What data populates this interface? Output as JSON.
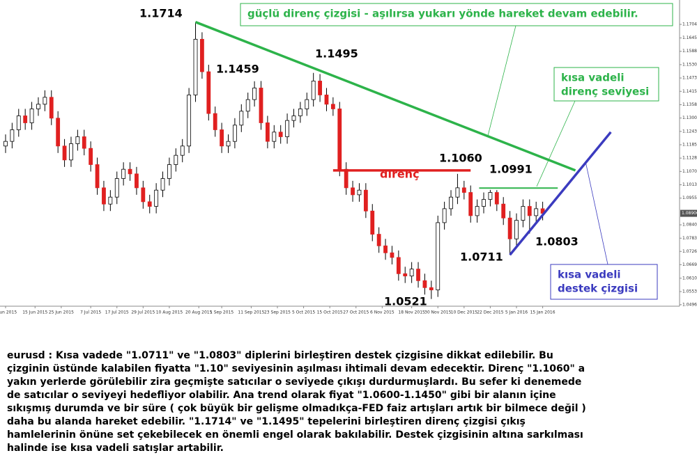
{
  "chart_data": {
    "type": "candlestick",
    "colors": {
      "up": "#ffffff",
      "down": "#e02020",
      "wick": "#000000"
    },
    "xlim": [
      -0.85,
      102.9
    ],
    "ylim": [
      1.049,
      1.1809
    ],
    "xticks": [
      {
        "value": 0,
        "label": "3 Jun 2015"
      },
      {
        "value": 4.5,
        "label": "15 Jun 2015"
      },
      {
        "value": 8.5,
        "label": "25 Jun 2015"
      },
      {
        "value": 13,
        "label": "7 Jul 2015"
      },
      {
        "value": 17,
        "label": "17 Jul 2015"
      },
      {
        "value": 21,
        "label": "29 Jul 2015"
      },
      {
        "value": 25,
        "label": "10 Aug 2015"
      },
      {
        "value": 29.5,
        "label": "20 Aug 2015"
      },
      {
        "value": 33,
        "label": "1 Sep 2015"
      },
      {
        "value": 37.5,
        "label": "11 Sep 2015"
      },
      {
        "value": 41.5,
        "label": "23 Sep 2015"
      },
      {
        "value": 45.5,
        "label": "5 Oct 2015"
      },
      {
        "value": 49.5,
        "label": "15 Oct 2015"
      },
      {
        "value": 53.5,
        "label": "27 Oct 2015"
      },
      {
        "value": 57.5,
        "label": "6 Nov 2015"
      },
      {
        "value": 62,
        "label": "18 Nov 2015"
      },
      {
        "value": 66,
        "label": "30 Nov 2015"
      },
      {
        "value": 70,
        "label": "10 Dec 2015"
      },
      {
        "value": 74,
        "label": "22 Dec 2015"
      },
      {
        "value": 78,
        "label": "5 Jan 2016"
      },
      {
        "value": 82,
        "label": "15 Jan 2016"
      }
    ],
    "yticks": [
      {
        "value": 1.1704,
        "label": "1.17040"
      },
      1.16455,
      {
        "value": 1.1588,
        "label": "1.15880"
      },
      1.15305,
      {
        "value": 1.1473,
        "label": "1.14730"
      },
      1.14155,
      {
        "value": 1.1358,
        "label": "1.13580"
      },
      1.13005,
      {
        "value": 1.1243,
        "label": "1.12430"
      },
      1.11855,
      {
        "value": 1.1128,
        "label": "1.11280"
      },
      1.10705,
      {
        "value": 1.1013,
        "label": "1.10130"
      },
      1.09555,
      1.08405,
      {
        "value": 1.0783,
        "label": "1.07830"
      },
      {
        "value": 1.0726,
        "label": "1.07260"
      },
      {
        "value": 1.0669,
        "label": "1.06690"
      },
      1.06105,
      {
        "value": 1.0553,
        "label": "1.05530"
      },
      1.04965
    ],
    "last_price": {
      "value": 1.089,
      "label": "1.08900"
    },
    "candles": [
      [
        1.118,
        1.123,
        1.115,
        1.12
      ],
      [
        1.12,
        1.128,
        1.117,
        1.125
      ],
      [
        1.125,
        1.134,
        1.122,
        1.131
      ],
      [
        1.131,
        1.134,
        1.125,
        1.128
      ],
      [
        1.128,
        1.137,
        1.125,
        1.134
      ],
      [
        1.134,
        1.139,
        1.131,
        1.136
      ],
      [
        1.136,
        1.142,
        1.133,
        1.139
      ],
      [
        1.139,
        1.142,
        1.127,
        1.13
      ],
      [
        1.13,
        1.133,
        1.115,
        1.118
      ],
      [
        1.118,
        1.121,
        1.109,
        1.112
      ],
      [
        1.112,
        1.122,
        1.109,
        1.119
      ],
      [
        1.119,
        1.125,
        1.116,
        1.122
      ],
      [
        1.122,
        1.125,
        1.114,
        1.117
      ],
      [
        1.117,
        1.12,
        1.107,
        1.11
      ],
      [
        1.11,
        1.113,
        1.097,
        1.1
      ],
      [
        1.1,
        1.103,
        1.09,
        1.093
      ],
      [
        1.093,
        1.099,
        1.09,
        1.096
      ],
      [
        1.096,
        1.107,
        1.093,
        1.104
      ],
      [
        1.104,
        1.111,
        1.101,
        1.108
      ],
      [
        1.108,
        1.111,
        1.103,
        1.106
      ],
      [
        1.106,
        1.109,
        1.097,
        1.1
      ],
      [
        1.1,
        1.103,
        1.091,
        1.094
      ],
      [
        1.094,
        1.097,
        1.089,
        1.092
      ],
      [
        1.092,
        1.102,
        1.089,
        1.099
      ],
      [
        1.099,
        1.107,
        1.096,
        1.104
      ],
      [
        1.104,
        1.113,
        1.101,
        1.11
      ],
      [
        1.11,
        1.117,
        1.107,
        1.114
      ],
      [
        1.114,
        1.121,
        1.111,
        1.118
      ],
      [
        1.118,
        1.143,
        1.115,
        1.14
      ],
      [
        1.14,
        1.1714,
        1.137,
        1.164
      ],
      [
        1.164,
        1.167,
        1.147,
        1.15
      ],
      [
        1.15,
        1.153,
        1.129,
        1.132
      ],
      [
        1.132,
        1.135,
        1.122,
        1.125
      ],
      [
        1.125,
        1.128,
        1.115,
        1.118
      ],
      [
        1.118,
        1.123,
        1.115,
        1.12
      ],
      [
        1.12,
        1.13,
        1.117,
        1.127
      ],
      [
        1.127,
        1.136,
        1.124,
        1.133
      ],
      [
        1.133,
        1.141,
        1.13,
        1.138
      ],
      [
        1.138,
        1.1459,
        1.135,
        1.143
      ],
      [
        1.143,
        1.146,
        1.125,
        1.128
      ],
      [
        1.128,
        1.131,
        1.117,
        1.12
      ],
      [
        1.12,
        1.127,
        1.117,
        1.124
      ],
      [
        1.124,
        1.127,
        1.119,
        1.122
      ],
      [
        1.122,
        1.132,
        1.119,
        1.129
      ],
      [
        1.129,
        1.134,
        1.126,
        1.131
      ],
      [
        1.131,
        1.137,
        1.128,
        1.134
      ],
      [
        1.134,
        1.141,
        1.131,
        1.138
      ],
      [
        1.138,
        1.1495,
        1.135,
        1.146
      ],
      [
        1.146,
        1.149,
        1.137,
        1.14
      ],
      [
        1.14,
        1.143,
        1.133,
        1.136
      ],
      [
        1.136,
        1.139,
        1.131,
        1.134
      ],
      [
        1.134,
        1.137,
        1.105,
        1.108
      ],
      [
        1.108,
        1.111,
        1.097,
        1.1
      ],
      [
        1.1,
        1.103,
        1.094,
        1.097
      ],
      [
        1.097,
        1.102,
        1.094,
        1.099
      ],
      [
        1.099,
        1.102,
        1.087,
        1.09
      ],
      [
        1.09,
        1.093,
        1.077,
        1.08
      ],
      [
        1.08,
        1.083,
        1.072,
        1.075
      ],
      [
        1.075,
        1.078,
        1.069,
        1.072
      ],
      [
        1.072,
        1.075,
        1.067,
        1.07
      ],
      [
        1.07,
        1.073,
        1.06,
        1.063
      ],
      [
        1.063,
        1.066,
        1.059,
        1.062
      ],
      [
        1.062,
        1.068,
        1.059,
        1.065
      ],
      [
        1.065,
        1.068,
        1.057,
        1.06
      ],
      [
        1.06,
        1.063,
        1.054,
        1.057
      ],
      [
        1.057,
        1.06,
        1.0521,
        1.056
      ],
      [
        1.056,
        1.088,
        1.053,
        1.085
      ],
      [
        1.085,
        1.094,
        1.082,
        1.091
      ],
      [
        1.091,
        1.099,
        1.088,
        1.096
      ],
      [
        1.096,
        1.106,
        1.093,
        1.1
      ],
      [
        1.1,
        1.103,
        1.095,
        1.098
      ],
      [
        1.098,
        1.101,
        1.085,
        1.088
      ],
      [
        1.088,
        1.095,
        1.085,
        1.092
      ],
      [
        1.092,
        1.098,
        1.089,
        1.095
      ],
      [
        1.095,
        1.0991,
        1.092,
        1.098
      ],
      [
        1.098,
        1.099,
        1.09,
        1.093
      ],
      [
        1.093,
        1.096,
        1.084,
        1.087
      ],
      [
        1.087,
        1.09,
        1.0711,
        1.078
      ],
      [
        1.078,
        1.089,
        1.075,
        1.086
      ],
      [
        1.086,
        1.095,
        1.083,
        1.092
      ],
      [
        1.092,
        1.095,
        1.0803,
        1.088
      ],
      [
        1.088,
        1.094,
        1.085,
        1.091
      ],
      [
        1.091,
        1.094,
        1.086,
        1.089
      ]
    ],
    "lines": [
      {
        "color": "#2db34a",
        "from": [
          29,
          1.1714
        ],
        "to": [
          87,
          1.1075
        ]
      },
      {
        "color": "#3b3bbf",
        "from": [
          77,
          1.0711
        ],
        "to": [
          92.4,
          1.124
        ]
      },
      {
        "color": "#e02020",
        "from": [
          50,
          1.1075
        ],
        "to": [
          71,
          1.1075
        ]
      },
      {
        "color": "#2db34a",
        "from": [
          72.3,
          1.0999
        ],
        "to": [
          84.3,
          1.0999
        ]
      }
    ],
    "price_labels": [
      "1.1714",
      "1.1459",
      "1.1495",
      "1.1060",
      "1.0991",
      "1.0803",
      "1.0711",
      "1.0521"
    ],
    "resistance_label": "direnç",
    "callouts": [
      {
        "lines": [
          "güçlü direnç çizgisi - aşılırsa yukarı yönde hareket devam edebilir."
        ],
        "color": "#2db34a"
      },
      {
        "lines": [
          "kısa vadeli",
          "direnç seviyesi"
        ],
        "color": "#2db34a"
      },
      {
        "lines": [
          "kısa vadeli",
          "destek çizgisi"
        ],
        "color": "#3b3bbf"
      }
    ]
  },
  "commentary": {
    "lines": [
      "eurusd : Kısa vadede \"1.0711\" ve \"1.0803\" diplerini birleştiren destek çizgisine dikkat edilebilir. Bu",
      "çizginin üstünde kalabilen fiyatta \"1.10\" seviyesinin aşılması ihtimali devam edecektir. Direnç \"1.1060\" a",
      "yakın yerlerde görülebilir zira geçmişte satıcılar o seviyede çıkışı durdurmuşlardı. Bu sefer ki denemede",
      "de satıcılar o seviyeyi hedefliyor olabilir. Ana trend olarak fiyat \"1.0600-1.1450\" gibi bir alanın içine",
      "sıkışmış durumda ve bir süre ( çok büyük bir gelişme olmadıkça-FED faiz artışları artık bir bilmece değil )",
      "daha bu alanda hareket edebilir. \"1.1714\" ve \"1.1495\" tepelerini birleştiren direnç çizgisi çıkış",
      "hamlelerinin önüne set çekebilecek en önemli engel olarak bakılabilir. Destek çizgisinin altına sarkılması",
      "halinde ise kısa vadeli satışlar artabilir."
    ]
  }
}
